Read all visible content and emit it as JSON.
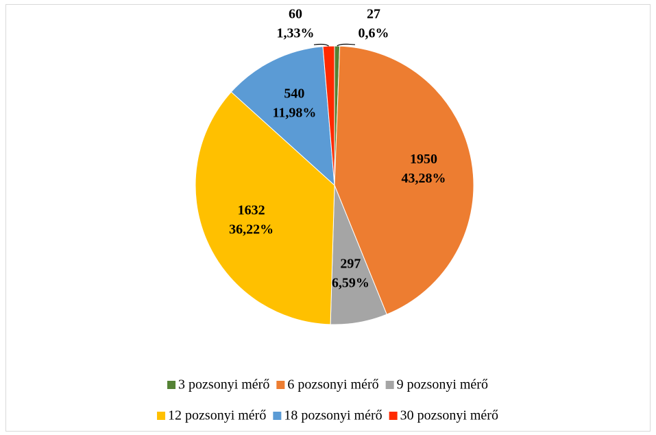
{
  "chart_data": {
    "type": "pie",
    "categories": [
      "3 pozsonyi mérő",
      "6 pozsonyi mérő",
      "9 pozsonyi mérő",
      "12 pozsonyi mérő",
      "18 pozsonyi mérő",
      "30 pozsonyi mérő"
    ],
    "values": [
      27,
      1950,
      297,
      1632,
      540,
      60
    ],
    "percentages": [
      {
        "value": 0.6,
        "label": "0,6%"
      },
      {
        "value": 43.28,
        "label": "43,28%"
      },
      {
        "value": 6.59,
        "label": "6,59%"
      },
      {
        "value": 36.22,
        "label": "36,22%"
      },
      {
        "value": 11.98,
        "label": "11,98%"
      },
      {
        "value": 1.33,
        "label": "1,33%"
      }
    ],
    "colors": [
      "#548235",
      "#ed7d31",
      "#a5a5a5",
      "#ffc000",
      "#5b9bd5",
      "#ff2a00"
    ],
    "legend": "bottom"
  }
}
